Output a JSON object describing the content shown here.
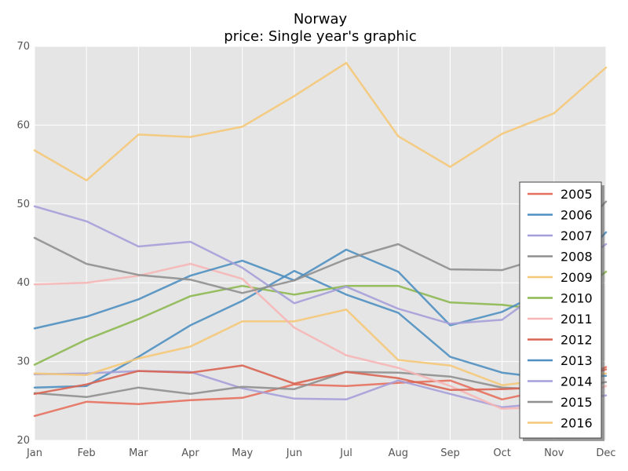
{
  "chart_data": {
    "type": "line",
    "title": "Norway",
    "subtitle": "price: Single year's graphic",
    "xlabel": "",
    "ylabel": "",
    "categories": [
      "Jan",
      "Feb",
      "Mar",
      "Apr",
      "May",
      "Jun",
      "Jul",
      "Aug",
      "Sep",
      "Oct",
      "Nov",
      "Dec"
    ],
    "ylim": [
      20,
      70
    ],
    "yticks": [
      "20",
      "30",
      "40",
      "50",
      "60",
      "70"
    ],
    "grid": true,
    "legend_position": "right",
    "series": [
      {
        "name": "2005",
        "color": "#e5705e",
        "values": [
          23.1,
          24.9,
          24.6,
          25.1,
          25.4,
          27.1,
          26.9,
          27.3,
          27.6,
          25.2,
          26.6,
          29.3
        ]
      },
      {
        "name": "2006",
        "color": "#4f8fc0",
        "values": [
          26.7,
          26.9,
          30.6,
          34.6,
          37.7,
          41.5,
          38.5,
          36.2,
          30.6,
          28.6,
          27.8,
          28.2
        ]
      },
      {
        "name": "2007",
        "color": "#a59fd9",
        "values": [
          28.4,
          28.5,
          28.8,
          28.7,
          26.6,
          25.3,
          25.2,
          27.6,
          25.9,
          24.2,
          24.8,
          25.7
        ]
      },
      {
        "name": "2008",
        "color": "#8f8f8f",
        "values": [
          26.0,
          25.5,
          26.7,
          25.9,
          26.8,
          26.5,
          28.7,
          28.6,
          28.1,
          26.7,
          26.4,
          27.4
        ]
      },
      {
        "name": "2009",
        "color": "#f5c877",
        "values": [
          28.5,
          28.3,
          30.4,
          31.9,
          35.1,
          35.1,
          36.6,
          30.2,
          29.5,
          27.0,
          27.8,
          28.5
        ]
      },
      {
        "name": "2010",
        "color": "#8db851",
        "values": [
          29.6,
          32.8,
          35.4,
          38.3,
          39.6,
          38.5,
          39.6,
          39.6,
          37.5,
          37.2,
          36.4,
          41.4
        ]
      },
      {
        "name": "2011",
        "color": "#f6b6b6",
        "values": [
          39.8,
          40.0,
          40.9,
          42.4,
          40.5,
          34.3,
          30.8,
          29.2,
          26.9,
          24.0,
          24.3,
          26.9
        ]
      },
      {
        "name": "2012",
        "color": "#d96452",
        "values": [
          25.9,
          27.1,
          28.8,
          28.6,
          29.5,
          27.2,
          28.7,
          27.9,
          26.4,
          26.5,
          26.8,
          29.0
        ]
      },
      {
        "name": "2013",
        "color": "#4f8fc0",
        "values": [
          34.2,
          35.7,
          37.9,
          40.9,
          42.8,
          40.3,
          44.2,
          41.4,
          34.6,
          36.3,
          39.6,
          46.4
        ]
      },
      {
        "name": "2014",
        "color": "#a59fd9",
        "values": [
          49.7,
          47.8,
          44.6,
          45.2,
          41.9,
          37.4,
          39.5,
          36.7,
          34.8,
          35.3,
          40.1,
          44.9
        ]
      },
      {
        "name": "2015",
        "color": "#8f8f8f",
        "values": [
          45.7,
          42.4,
          41.0,
          40.4,
          38.7,
          40.3,
          43.0,
          44.9,
          41.7,
          41.6,
          43.6,
          50.3
        ]
      },
      {
        "name": "2016",
        "color": "#f5c877",
        "values": [
          56.8,
          53.0,
          58.8,
          58.5,
          59.8,
          63.7,
          67.9,
          58.6,
          54.7,
          58.9,
          61.5,
          67.3
        ]
      }
    ]
  }
}
